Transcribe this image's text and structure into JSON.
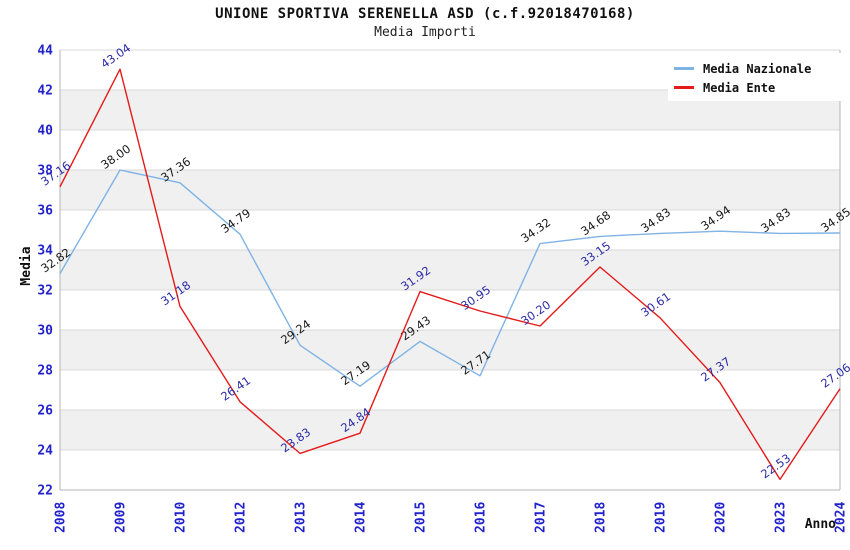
{
  "title": "UNIONE SPORTIVA SERENELLA ASD (c.f.92018470168)",
  "subtitle": "Media Importi",
  "chart_data": {
    "type": "line",
    "categories": [
      "2008",
      "2009",
      "2010",
      "2012",
      "2013",
      "2014",
      "2015",
      "2016",
      "2017",
      "2018",
      "2019",
      "2020",
      "2023",
      "2024"
    ],
    "series": [
      {
        "name": "Media Nazionale",
        "color": "#7FB3E6",
        "label_color": "#1a1a1a",
        "values": [
          32.82,
          38.0,
          37.36,
          34.79,
          29.24,
          27.19,
          29.43,
          27.71,
          34.32,
          34.68,
          34.83,
          34.94,
          34.83,
          34.85
        ]
      },
      {
        "name": "Media Ente",
        "color": "#E51A1A",
        "label_color": "#2B2BA8",
        "values": [
          37.16,
          43.04,
          31.18,
          26.41,
          23.83,
          24.84,
          31.92,
          30.95,
          30.2,
          33.15,
          30.61,
          27.37,
          22.53,
          27.06
        ]
      }
    ],
    "xlabel": "Anno",
    "ylabel": "Media",
    "ylim": [
      22,
      44
    ],
    "y_ticks": [
      22,
      24,
      26,
      28,
      30,
      32,
      34,
      36,
      38,
      40,
      42,
      44
    ],
    "grid": true,
    "legend_position": "top-right",
    "colors": {
      "axis_tick_label": "#2222CC",
      "gridline": "#d9d9d9",
      "frame": "#b5b5b5",
      "band": "#f0f0f0",
      "axis_title": "#111111"
    }
  }
}
